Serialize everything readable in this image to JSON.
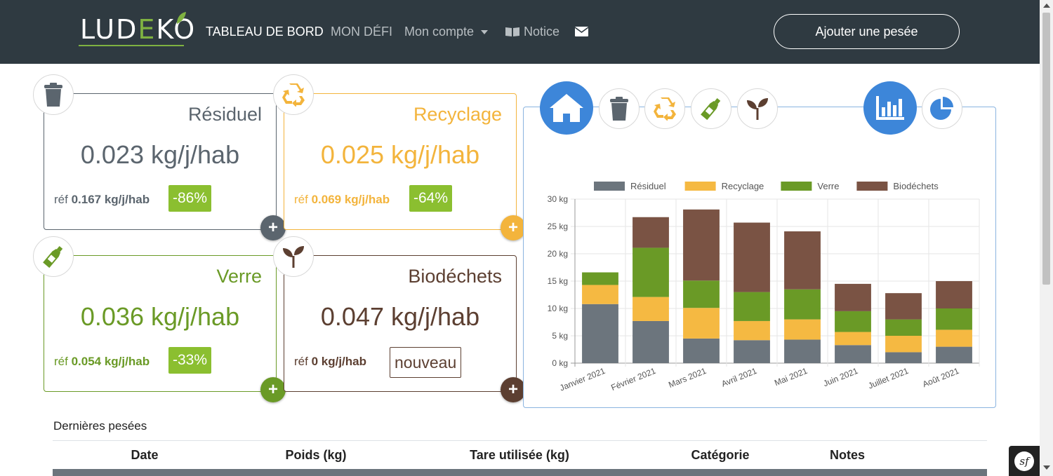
{
  "brand": {
    "logo_text_a": "LUD",
    "logo_text_e": "E",
    "logo_text_b": "KO"
  },
  "nav": {
    "dashboard": "TABLEAU DE BORD",
    "challenge": "MON DÉFI",
    "account": "Mon compte",
    "notice": "Notice",
    "add_weighing": "Ajouter une pesée"
  },
  "cards": [
    {
      "title": "Résiduel",
      "value": "0.023 kg/j/hab",
      "ref_label": "réf",
      "ref_value": "0.167 kg/j/hab",
      "badge": "-86%",
      "color": "#5b656e",
      "plus_color": "#5b656e",
      "icon": "trash-icon"
    },
    {
      "title": "Recyclage",
      "value": "0.025 kg/j/hab",
      "ref_label": "réf",
      "ref_value": "0.069 kg/j/hab",
      "badge": "-64%",
      "color": "#f3b43c",
      "plus_color": "#f3b43c",
      "icon": "recycle-icon"
    },
    {
      "title": "Verre",
      "value": "0.036 kg/j/hab",
      "ref_label": "réf",
      "ref_value": "0.054 kg/j/hab",
      "badge": "-33%",
      "color": "#6a9a26",
      "plus_color": "#6a9a26",
      "icon": "bottle-icon"
    },
    {
      "title": "Biodéchets",
      "value": "0.047 kg/j/hab",
      "ref_label": "réf",
      "ref_value": "0 kg/j/hab",
      "badge": "nouveau",
      "color": "#5c3f31",
      "plus_color": "#5c3f31",
      "icon": "sprout-icon"
    }
  ],
  "chart_data": {
    "type": "bar",
    "stacked": true,
    "categories": [
      "Janvier 2021",
      "Février 2021",
      "Mars 2021",
      "Avril 2021",
      "Mai 2021",
      "Juin 2021",
      "Juillet 2021",
      "Août 2021"
    ],
    "series": [
      {
        "name": "Résiduel",
        "color": "#6c757d",
        "values": [
          10.8,
          7.7,
          4.5,
          4.2,
          4.3,
          3.3,
          2.0,
          3.0
        ]
      },
      {
        "name": "Recyclage",
        "color": "#f5b942",
        "values": [
          3.5,
          4.4,
          5.6,
          3.5,
          3.7,
          2.4,
          3.0,
          3.1
        ]
      },
      {
        "name": "Verre",
        "color": "#6a9a26",
        "values": [
          2.3,
          9.0,
          5.0,
          5.3,
          5.5,
          3.8,
          3.0,
          3.9
        ]
      },
      {
        "name": "Biodéchets",
        "color": "#7a5344",
        "values": [
          0,
          5.6,
          13.0,
          12.7,
          10.6,
          5.0,
          4.8,
          5.0
        ]
      }
    ],
    "ylim": [
      0,
      30
    ],
    "yticks": [
      "0 kg",
      "5 kg",
      "10 kg",
      "15 kg",
      "20 kg",
      "25 kg",
      "30 kg"
    ],
    "grid": true,
    "legend": "top"
  },
  "table": {
    "title": "Dernières pesées",
    "headers": [
      "Date",
      "Poids (kg)",
      "Tare utilisée (kg)",
      "Catégorie",
      "Notes"
    ]
  }
}
